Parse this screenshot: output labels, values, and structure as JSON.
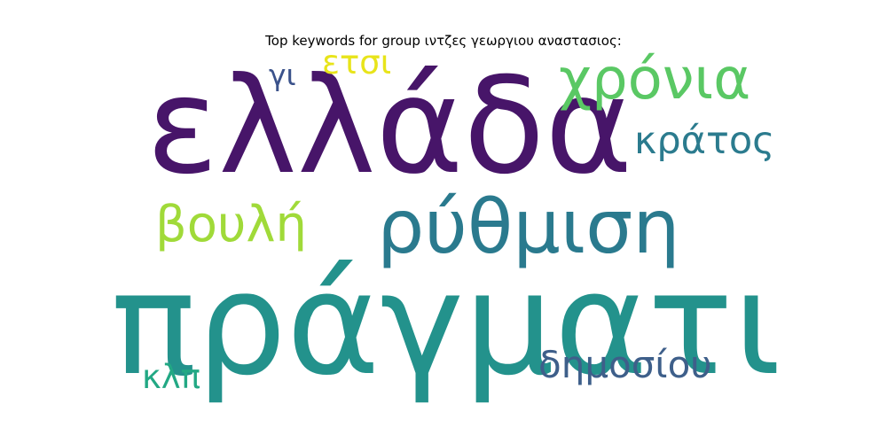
{
  "title": "Top keywords for group ιντζες γεωργιου αναστασιος:",
  "chart_data": {
    "type": "wordcloud",
    "title": "Top keywords for group ιντζες γεωργιου αναστασιος:",
    "words": [
      {
        "text": "πράγματι",
        "weight": 1.0,
        "color": "#23928c"
      },
      {
        "text": "ελλάδα",
        "weight": 0.93,
        "color": "#471569"
      },
      {
        "text": "ρύθμιση",
        "weight": 0.55,
        "color": "#2a7a8e"
      },
      {
        "text": "χρόνια",
        "weight": 0.42,
        "color": "#5ac864"
      },
      {
        "text": "βουλή",
        "weight": 0.36,
        "color": "#a0da39"
      },
      {
        "text": "κράτος",
        "weight": 0.28,
        "color": "#2b7b8e"
      },
      {
        "text": "δημοσίου",
        "weight": 0.28,
        "color": "#3e5f8a"
      },
      {
        "text": "ετσι",
        "weight": 0.24,
        "color": "#e8e41a"
      },
      {
        "text": "κλπ",
        "weight": 0.24,
        "color": "#22a884"
      },
      {
        "text": "γι",
        "weight": 0.22,
        "color": "#3b528b"
      }
    ]
  }
}
